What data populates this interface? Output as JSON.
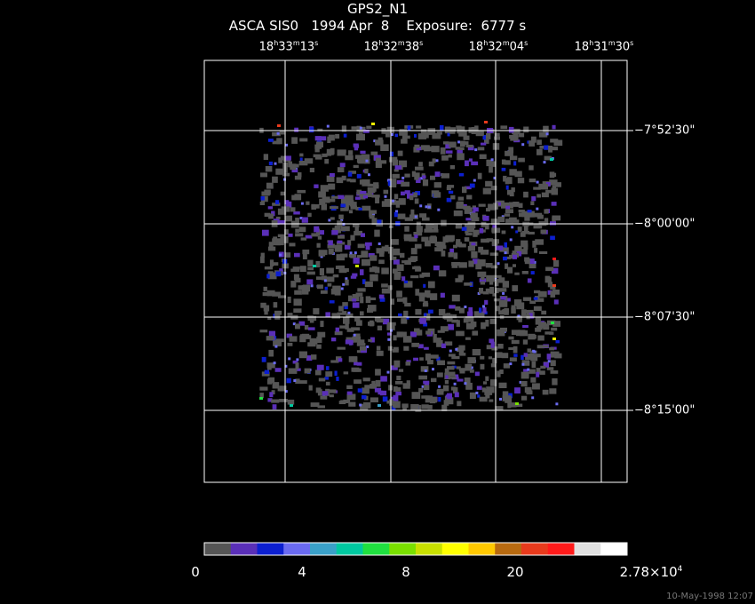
{
  "header": {
    "title": "GPS2_N1",
    "subtitle": "ASCA SIS0   1994 Apr  8    Exposure:  6777 s"
  },
  "ra_labels": [
    {
      "h": "18",
      "m": "33",
      "s": "13"
    },
    {
      "h": "18",
      "m": "32",
      "s": "38"
    },
    {
      "h": "18",
      "m": "32",
      "s": "04"
    },
    {
      "h": "18",
      "m": "31",
      "s": "30"
    }
  ],
  "dec_labels": [
    "−7°52'30\"",
    "−8°00'00\"",
    "−8°07'30\"",
    "−8°15'00\""
  ],
  "colorbar": {
    "colors": [
      "#555555",
      "#5a2fb8",
      "#0c1fd0",
      "#6a6af0",
      "#3aa0c8",
      "#00c8a0",
      "#20e040",
      "#7ae000",
      "#c8e000",
      "#ffff00",
      "#ffc800",
      "#b86a10",
      "#e83a1c",
      "#ff1a1a",
      "#e0e0e0",
      "#ffffff"
    ],
    "tick_labels": [
      "0",
      "4",
      "8",
      "20"
    ],
    "max_label_base": "2.78×10",
    "max_label_exp": "4"
  },
  "footer": "10-May-1998 12:07"
}
